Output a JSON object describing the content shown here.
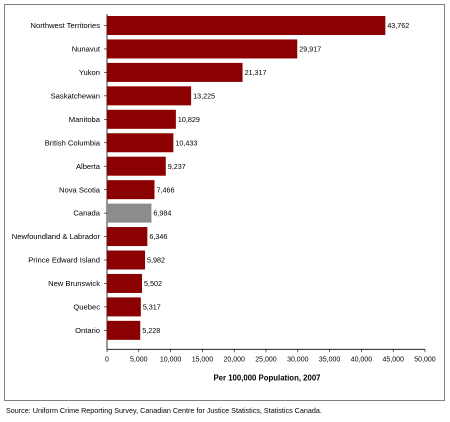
{
  "chart_data": {
    "type": "bar",
    "orientation": "horizontal",
    "categories": [
      "Northwest Territories",
      "Nunavut",
      "Yukon",
      "Saskatchewan",
      "Manitoba",
      "British Columbia",
      "Alberta",
      "Nova Scotia",
      "Canada",
      "Newfoundland & Labrador",
      "Prince Edward Island",
      "New Brunswick",
      "Quebec",
      "Ontario"
    ],
    "values": [
      43762,
      29917,
      21317,
      13225,
      10829,
      10433,
      9237,
      7466,
      6984,
      6346,
      5982,
      5502,
      5317,
      5228
    ],
    "value_labels": [
      "43,762",
      "29,917",
      "21,317",
      "13,225",
      "10,829",
      "10,433",
      "9,237",
      "7,466",
      "6,984",
      "6,346",
      "5,982",
      "5,502",
      "5,317",
      "5,228"
    ],
    "highlight_category": "Canada",
    "xlabel": "Per 100,000 Population, 2007",
    "xlim": [
      0,
      50000
    ],
    "xticks": [
      0,
      5000,
      10000,
      15000,
      20000,
      25000,
      30000,
      35000,
      40000,
      45000,
      50000
    ],
    "xtick_labels": [
      "0",
      "5,000",
      "10,000",
      "15,000",
      "20,000",
      "25,000",
      "30,000",
      "35,000",
      "40,000",
      "45,000",
      "50,000"
    ],
    "grid": false,
    "legend": "none",
    "colors": {
      "bar": "#8b0000",
      "highlight": "#8c8c8c"
    }
  },
  "source": "Source:  Uniform Crime Reporting Survey, Canadian Centre for Justice Statistics, Statistics Canada."
}
